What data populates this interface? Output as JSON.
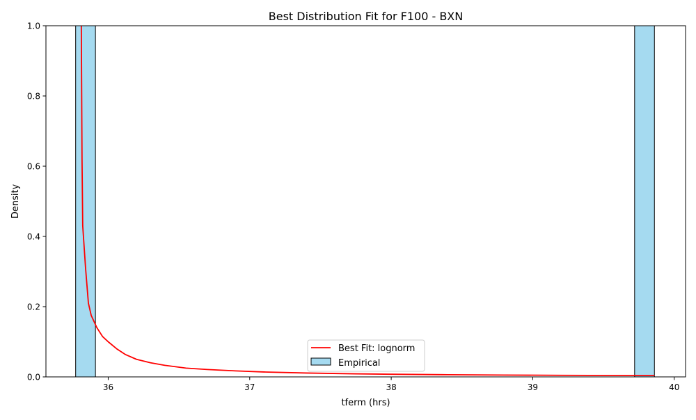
{
  "chart_data": {
    "type": "histogram+line",
    "title": "Best Distribution Fit for F100 - BXN",
    "xlabel": "tferm (hrs)",
    "ylabel": "Density",
    "xlim": [
      35.56,
      40.08
    ],
    "ylim": [
      0,
      1
    ],
    "x_ticks": [
      "36",
      "37",
      "38",
      "39",
      "40"
    ],
    "y_ticks": [
      "0.0",
      "0.2",
      "0.4",
      "0.6",
      "0.8",
      "1.0"
    ],
    "grid": false,
    "legend_position": "lower center",
    "histogram": {
      "name": "Empirical",
      "color": "#87ceeb",
      "edge_color": "#000000",
      "bins": [
        {
          "x0": 35.77,
          "x1": 35.91,
          "density": 3.5
        },
        {
          "x0": 39.72,
          "x1": 39.86,
          "density": 3.5
        }
      ]
    },
    "fit_line": {
      "name": "Best Fit: lognorm",
      "color": "#ff0000",
      "x": [
        35.81,
        35.815,
        35.82,
        35.84,
        35.86,
        35.88,
        35.92,
        35.96,
        36.0,
        36.06,
        36.12,
        36.2,
        36.3,
        36.4,
        36.55,
        36.7,
        36.9,
        37.1,
        37.4,
        37.7,
        38.0,
        38.4,
        38.8,
        39.2,
        39.6,
        39.86
      ],
      "y": [
        1.0,
        0.62,
        0.43,
        0.31,
        0.21,
        0.175,
        0.14,
        0.115,
        0.1,
        0.08,
        0.064,
        0.05,
        0.04,
        0.033,
        0.025,
        0.021,
        0.017,
        0.014,
        0.011,
        0.009,
        0.0075,
        0.0062,
        0.0052,
        0.0045,
        0.004,
        0.0037
      ]
    },
    "legend": [
      {
        "label": "Best Fit: lognorm",
        "kind": "line"
      },
      {
        "label": "Empirical",
        "kind": "patch"
      }
    ]
  }
}
